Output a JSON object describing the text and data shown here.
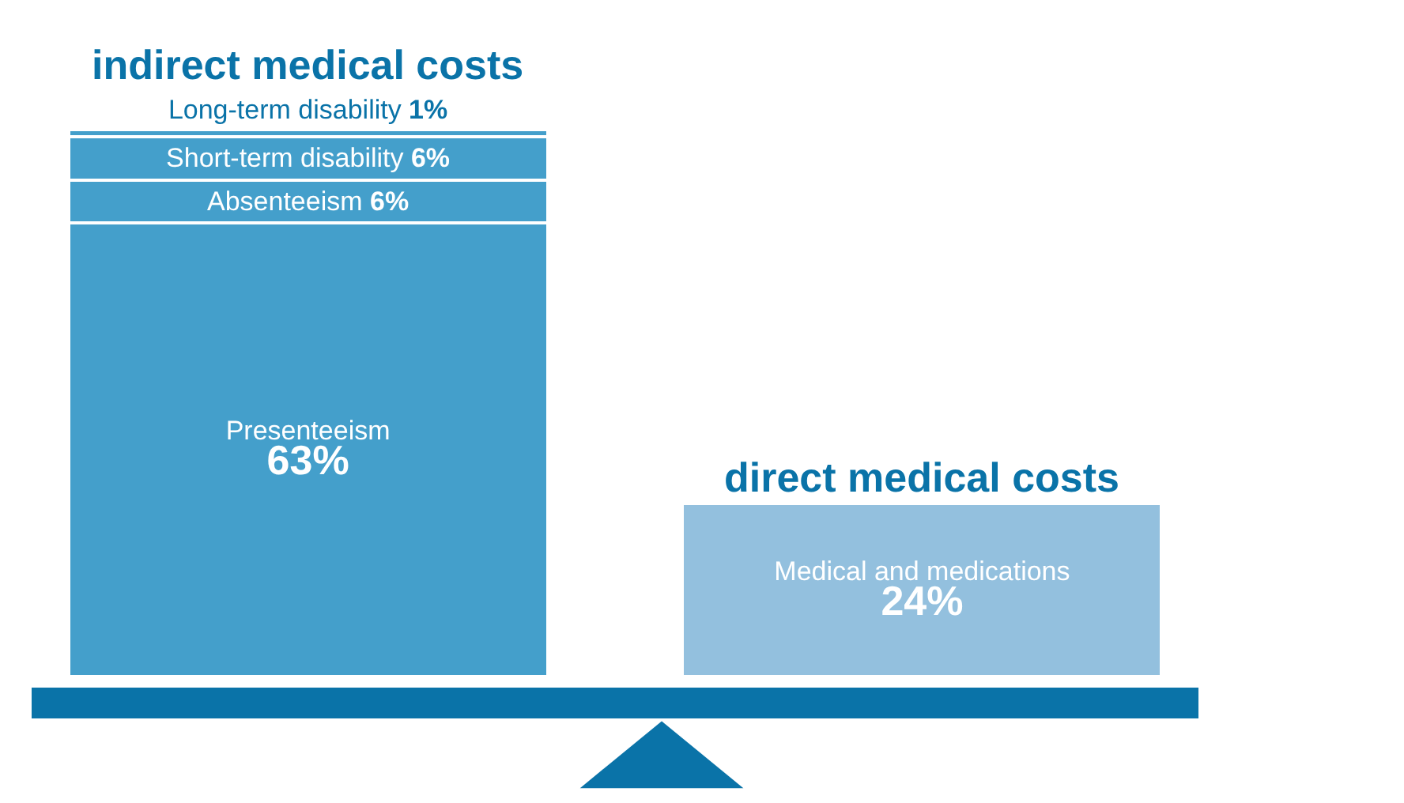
{
  "chart_data": {
    "type": "bar",
    "stacked": true,
    "tick_labels": false,
    "categories": [
      "indirect medical costs",
      "direct medical costs"
    ],
    "series": [
      {
        "name": "Presenteeism",
        "color": "#449fcb",
        "values": [
          63,
          null
        ],
        "value_labels": [
          "63%",
          null
        ]
      },
      {
        "name": "Absenteeism",
        "color": "#449fcb",
        "values": [
          6,
          null
        ],
        "value_labels": [
          "6%",
          null
        ]
      },
      {
        "name": "Short-term disability",
        "color": "#449fcb",
        "values": [
          6,
          null
        ],
        "value_labels": [
          "6%",
          null
        ]
      },
      {
        "name": "Long-term disability",
        "color": "#449fcb",
        "values": [
          1,
          null
        ],
        "value_labels": [
          "1%",
          null
        ]
      },
      {
        "name": "Medical and medications",
        "color": "#93c0de",
        "values": [
          null,
          24
        ],
        "value_labels": [
          null,
          "24%"
        ]
      }
    ]
  }
}
